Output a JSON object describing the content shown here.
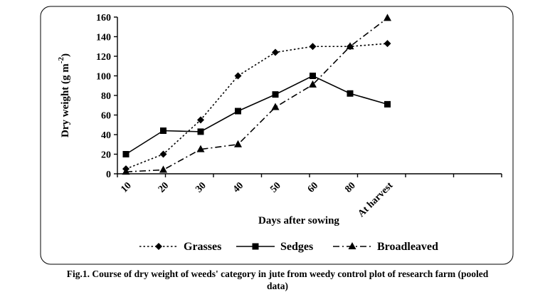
{
  "chart_data": {
    "type": "line",
    "title": "",
    "xlabel": "Days after sowing",
    "ylabel": "Dry weight (g m",
    "ylabel_sup": "-2",
    "ylabel_close": ")",
    "categories": [
      "10",
      "20",
      "30",
      "40",
      "50",
      "60",
      "80",
      "At harvest"
    ],
    "ylim": [
      0,
      160
    ],
    "yticks": [
      "0",
      "20",
      "40",
      "60",
      "80",
      "100",
      "120",
      "140",
      "160"
    ],
    "grid": false,
    "legend_position": "bottom",
    "series": [
      {
        "name": "Grasses",
        "values": [
          5,
          20,
          55,
          100,
          124,
          130,
          130,
          133
        ],
        "marker": "diamond",
        "dash": "dotted"
      },
      {
        "name": "Sedges",
        "values": [
          20,
          44,
          43,
          64,
          81,
          100,
          82,
          71
        ],
        "marker": "square",
        "dash": "solid"
      },
      {
        "name": "Broadleaved",
        "values": [
          2,
          4,
          25,
          30,
          68,
          91,
          130,
          159
        ],
        "marker": "triangle",
        "dash": "dashdot"
      }
    ]
  },
  "caption": {
    "line1": "Fig.1. Course of dry weight of weeds' category in jute from weedy control plot of research farm (pooled",
    "line2": "data)"
  }
}
